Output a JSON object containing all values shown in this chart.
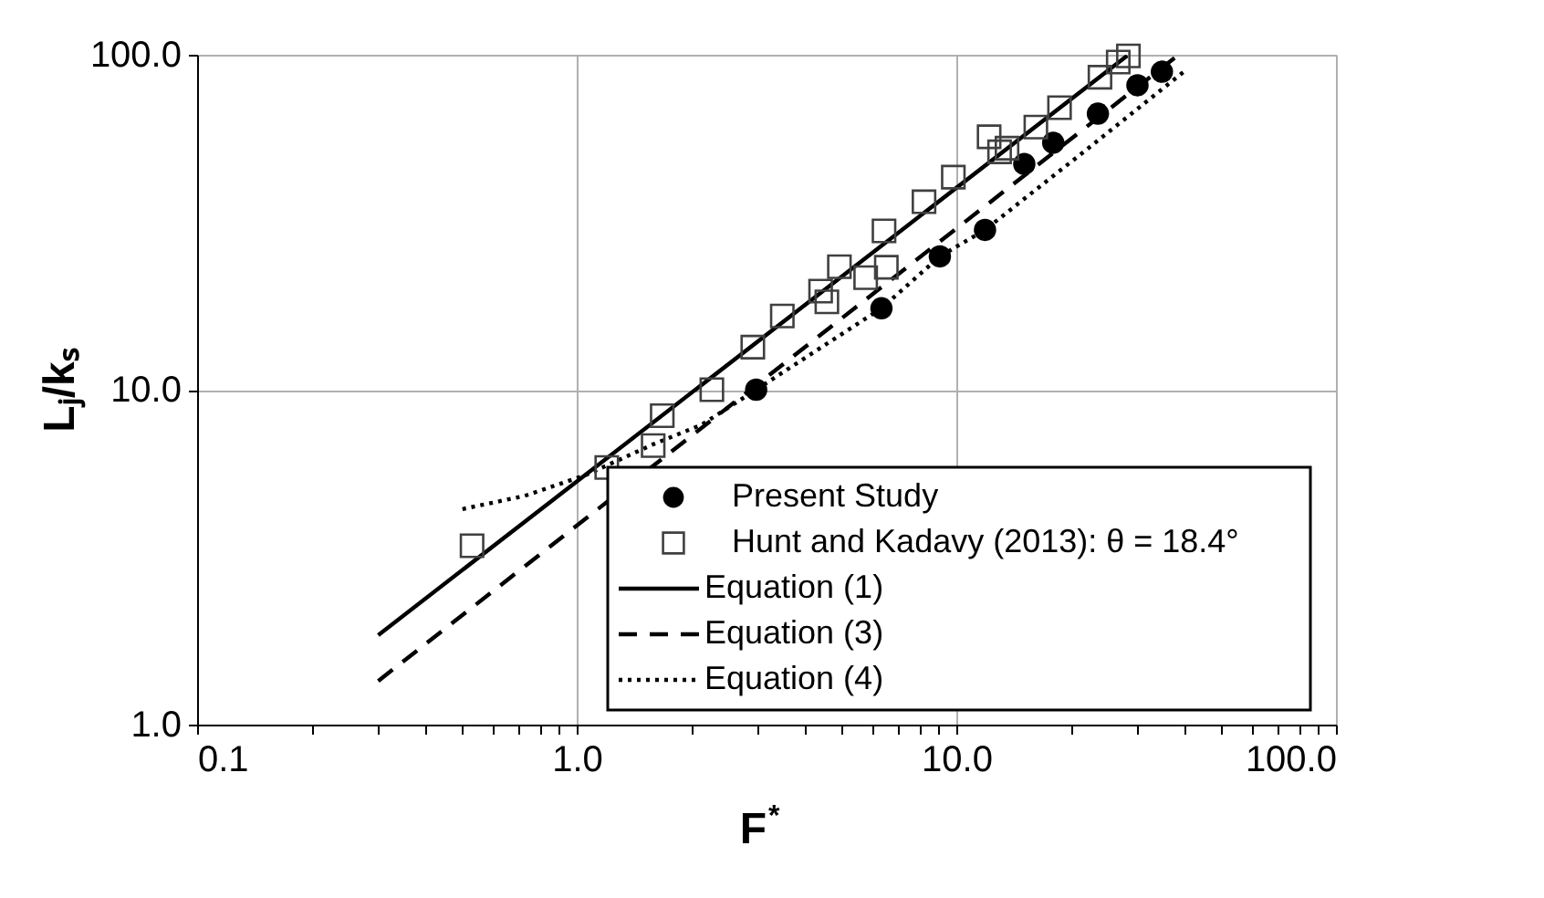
{
  "chart_data": {
    "type": "scatter",
    "xlabel": "F$^{*}$",
    "ylabel": "Lⱼ/kₛ",
    "log": "xy",
    "grid": true,
    "legend": "bottom right",
    "xlim": [
      0.1,
      100
    ],
    "ylim": [
      1,
      100
    ],
    "xticks": [
      {
        "value": 0.1,
        "label": "0.1"
      },
      {
        "value": 0.2,
        "label": null
      },
      {
        "value": 0.3,
        "label": null
      },
      {
        "value": 0.4,
        "label": null
      },
      {
        "value": 0.5,
        "label": null
      },
      {
        "value": 0.6,
        "label": null
      },
      {
        "value": 0.7,
        "label": null
      },
      {
        "value": 0.8,
        "label": null
      },
      {
        "value": 0.9,
        "label": null
      },
      {
        "value": 1,
        "label": "1.0"
      },
      {
        "value": 2,
        "label": null
      },
      {
        "value": 3,
        "label": null
      },
      {
        "value": 4,
        "label": null
      },
      {
        "value": 5,
        "label": null
      },
      {
        "value": 6,
        "label": null
      },
      {
        "value": 7,
        "label": null
      },
      {
        "value": 8,
        "label": null
      },
      {
        "value": 9,
        "label": null
      },
      {
        "value": 10,
        "label": "10.0"
      },
      {
        "value": 20,
        "label": null
      },
      {
        "value": 30,
        "label": null
      },
      {
        "value": 40,
        "label": null
      },
      {
        "value": 50,
        "label": null
      },
      {
        "value": 60,
        "label": null
      },
      {
        "value": 70,
        "label": null
      },
      {
        "value": 80,
        "label": null
      },
      {
        "value": 90,
        "label": null
      },
      {
        "value": 100,
        "label": "100.0"
      }
    ],
    "yticks": [
      {
        "value": 1,
        "label": "1.0"
      },
      {
        "value": 10,
        "label": "10.0"
      },
      {
        "value": 100,
        "label": "100.0"
      }
    ],
    "series": [
      {
        "name": "Present Study",
        "marker": "circle",
        "color": "#000000",
        "x": [
          2.97,
          6.35,
          9.05,
          11.9,
          15.1,
          18.0,
          23.6,
          30.0,
          34.8
        ],
        "values": [
          10.0,
          17.5,
          25.0,
          30.0,
          47.2,
          54.6,
          66.7,
          81.1,
          89.0
        ]
      },
      {
        "name": "Hunt and Kadavy (2013): θ = 18.4°",
        "marker": "square",
        "color": "#404040",
        "x": [
          0.53,
          1.2,
          1.59,
          1.68,
          2.27,
          2.91,
          3.48,
          4.39,
          4.56,
          4.92,
          5.77,
          6.54,
          6.45,
          8.22,
          9.82,
          12.2,
          13.0,
          13.6,
          16.2,
          18.7,
          23.9,
          26.7,
          28.4
        ],
        "values": [
          3.42,
          5.86,
          6.81,
          8.36,
          10.0,
          13.4,
          16.6,
          19.7,
          18.3,
          23.3,
          21.6,
          23.2,
          29.8,
          36.4,
          43.1,
          56.9,
          51.3,
          52.6,
          60.8,
          69.5,
          85.7,
          95.1,
          99.2
        ]
      },
      {
        "name": "Equation (1)",
        "type": "line",
        "line_style": "solid",
        "color": "#000000",
        "x": [
          0.3,
          28.2
        ],
        "values": [
          1.85,
          99.4
        ]
      },
      {
        "name": "Equation (3)",
        "type": "line",
        "line_style": "dashed",
        "color": "#000000",
        "x": [
          0.3,
          38.5
        ],
        "values": [
          1.35,
          100
        ]
      },
      {
        "name": "Equation (4)",
        "type": "line",
        "line_style": "dotted",
        "color": "#000000",
        "x": [
          0.5,
          0.73,
          1.06,
          1.59,
          2.13,
          2.97,
          6.35,
          9.05,
          11.9,
          21.8,
          40.5
        ],
        "values": [
          4.4,
          4.82,
          5.57,
          6.87,
          7.85,
          10.0,
          17.5,
          25.0,
          30.0,
          51.6,
          90.5
        ]
      }
    ]
  }
}
